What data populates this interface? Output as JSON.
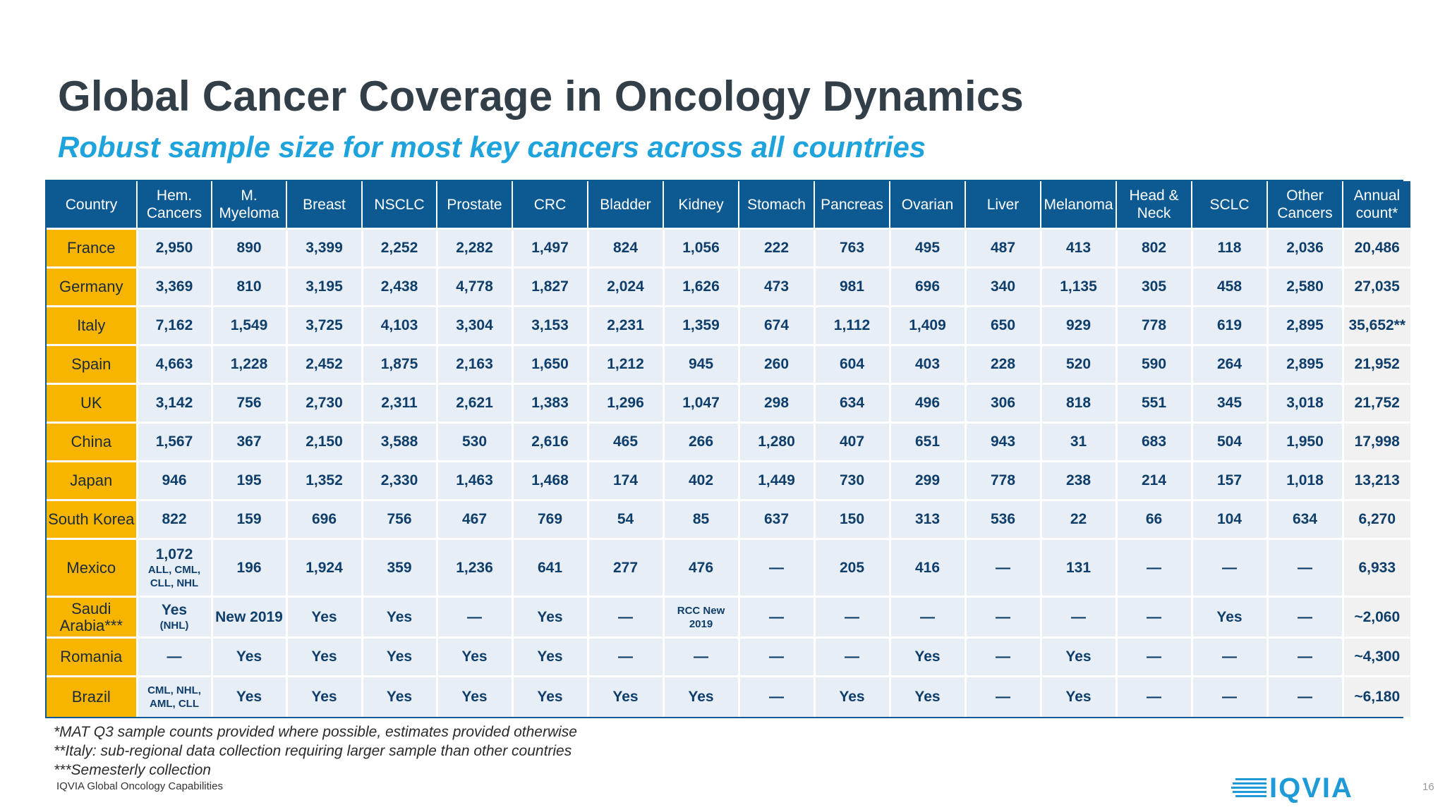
{
  "slide": {
    "title": "Global Cancer Coverage in Oncology Dynamics",
    "subtitle": "Robust sample size for most key cancers across all countries",
    "page_number": "16",
    "source": "IQVIA Global Oncology Capabilities",
    "logo_text": "IQVIA"
  },
  "colors": {
    "header_bg": "#0d5a93",
    "country_bg": "#f7b500",
    "cell_bg": "#e7eef6",
    "annual_bg": "#f1f1f1",
    "title": "#333f48",
    "subtitle": "#1ea3dc",
    "logo": "#1e9ad6"
  },
  "table": {
    "columns": [
      {
        "label": "Country"
      },
      {
        "label": "Hem.\nCancers"
      },
      {
        "label": "M.\nMyeloma"
      },
      {
        "label": "Breast"
      },
      {
        "label": "NSCLC"
      },
      {
        "label": "Prostate"
      },
      {
        "label": "CRC"
      },
      {
        "label": "Bladder"
      },
      {
        "label": "Kidney"
      },
      {
        "label": "Stomach"
      },
      {
        "label": "Pancreas"
      },
      {
        "label": "Ovarian"
      },
      {
        "label": "Liver"
      },
      {
        "label": "Melanoma"
      },
      {
        "label": "Head &\nNeck"
      },
      {
        "label": "SCLC"
      },
      {
        "label": "Other\nCancers"
      },
      {
        "label": "Annual\ncount*"
      }
    ],
    "rows": [
      {
        "country": "France",
        "cells": [
          {
            "v": "2,950"
          },
          {
            "v": "890"
          },
          {
            "v": "3,399"
          },
          {
            "v": "2,252"
          },
          {
            "v": "2,282"
          },
          {
            "v": "1,497"
          },
          {
            "v": "824"
          },
          {
            "v": "1,056"
          },
          {
            "v": "222"
          },
          {
            "v": "763"
          },
          {
            "v": "495"
          },
          {
            "v": "487"
          },
          {
            "v": "413"
          },
          {
            "v": "802"
          },
          {
            "v": "118"
          },
          {
            "v": "2,036"
          },
          {
            "v": "20,486"
          }
        ]
      },
      {
        "country": "Germany",
        "cells": [
          {
            "v": "3,369"
          },
          {
            "v": "810"
          },
          {
            "v": "3,195"
          },
          {
            "v": "2,438"
          },
          {
            "v": "4,778"
          },
          {
            "v": "1,827"
          },
          {
            "v": "2,024"
          },
          {
            "v": "1,626"
          },
          {
            "v": "473"
          },
          {
            "v": "981"
          },
          {
            "v": "696"
          },
          {
            "v": "340"
          },
          {
            "v": "1,135"
          },
          {
            "v": "305"
          },
          {
            "v": "458"
          },
          {
            "v": "2,580"
          },
          {
            "v": "27,035"
          }
        ]
      },
      {
        "country": "Italy",
        "cells": [
          {
            "v": "7,162"
          },
          {
            "v": "1,549"
          },
          {
            "v": "3,725"
          },
          {
            "v": "4,103"
          },
          {
            "v": "3,304"
          },
          {
            "v": "3,153"
          },
          {
            "v": "2,231"
          },
          {
            "v": "1,359"
          },
          {
            "v": "674"
          },
          {
            "v": "1,112"
          },
          {
            "v": "1,409"
          },
          {
            "v": "650"
          },
          {
            "v": "929"
          },
          {
            "v": "778"
          },
          {
            "v": "619"
          },
          {
            "v": "2,895"
          },
          {
            "v": "35,652**"
          }
        ]
      },
      {
        "country": "Spain",
        "cells": [
          {
            "v": "4,663"
          },
          {
            "v": "1,228"
          },
          {
            "v": "2,452"
          },
          {
            "v": "1,875"
          },
          {
            "v": "2,163"
          },
          {
            "v": "1,650"
          },
          {
            "v": "1,212"
          },
          {
            "v": "945"
          },
          {
            "v": "260"
          },
          {
            "v": "604"
          },
          {
            "v": "403"
          },
          {
            "v": "228"
          },
          {
            "v": "520"
          },
          {
            "v": "590"
          },
          {
            "v": "264"
          },
          {
            "v": "2,895"
          },
          {
            "v": "21,952"
          }
        ]
      },
      {
        "country": "UK",
        "cells": [
          {
            "v": "3,142"
          },
          {
            "v": "756"
          },
          {
            "v": "2,730"
          },
          {
            "v": "2,311"
          },
          {
            "v": "2,621"
          },
          {
            "v": "1,383"
          },
          {
            "v": "1,296"
          },
          {
            "v": "1,047"
          },
          {
            "v": "298"
          },
          {
            "v": "634"
          },
          {
            "v": "496"
          },
          {
            "v": "306"
          },
          {
            "v": "818"
          },
          {
            "v": "551"
          },
          {
            "v": "345"
          },
          {
            "v": "3,018"
          },
          {
            "v": "21,752"
          }
        ]
      },
      {
        "country": "China",
        "cells": [
          {
            "v": "1,567"
          },
          {
            "v": "367"
          },
          {
            "v": "2,150"
          },
          {
            "v": "3,588"
          },
          {
            "v": "530"
          },
          {
            "v": "2,616"
          },
          {
            "v": "465"
          },
          {
            "v": "266"
          },
          {
            "v": "1,280"
          },
          {
            "v": "407"
          },
          {
            "v": "651"
          },
          {
            "v": "943"
          },
          {
            "v": "31"
          },
          {
            "v": "683"
          },
          {
            "v": "504"
          },
          {
            "v": "1,950"
          },
          {
            "v": "17,998"
          }
        ]
      },
      {
        "country": "Japan",
        "cells": [
          {
            "v": "946"
          },
          {
            "v": "195"
          },
          {
            "v": "1,352"
          },
          {
            "v": "2,330"
          },
          {
            "v": "1,463"
          },
          {
            "v": "1,468"
          },
          {
            "v": "174"
          },
          {
            "v": "402"
          },
          {
            "v": "1,449"
          },
          {
            "v": "730"
          },
          {
            "v": "299"
          },
          {
            "v": "778"
          },
          {
            "v": "238"
          },
          {
            "v": "214"
          },
          {
            "v": "157"
          },
          {
            "v": "1,018"
          },
          {
            "v": "13,213"
          }
        ]
      },
      {
        "country": "South Korea",
        "cells": [
          {
            "v": "822"
          },
          {
            "v": "159"
          },
          {
            "v": "696"
          },
          {
            "v": "756"
          },
          {
            "v": "467"
          },
          {
            "v": "769"
          },
          {
            "v": "54"
          },
          {
            "v": "85"
          },
          {
            "v": "637"
          },
          {
            "v": "150"
          },
          {
            "v": "313"
          },
          {
            "v": "536"
          },
          {
            "v": "22"
          },
          {
            "v": "66"
          },
          {
            "v": "104"
          },
          {
            "v": "634"
          },
          {
            "v": "6,270"
          }
        ]
      },
      {
        "country": "Mexico",
        "cells": [
          {
            "v": "1,072",
            "sub": "ALL, CML,\nCLL, NHL"
          },
          {
            "v": "196"
          },
          {
            "v": "1,924"
          },
          {
            "v": "359"
          },
          {
            "v": "1,236"
          },
          {
            "v": "641"
          },
          {
            "v": "277"
          },
          {
            "v": "476"
          },
          {
            "v": "—"
          },
          {
            "v": "205"
          },
          {
            "v": "416"
          },
          {
            "v": "—"
          },
          {
            "v": "131"
          },
          {
            "v": "—"
          },
          {
            "v": "—"
          },
          {
            "v": "—"
          },
          {
            "v": "6,933"
          }
        ]
      },
      {
        "country": "Saudi\nArabia***",
        "cells": [
          {
            "v": "Yes",
            "sub": "(NHL)"
          },
          {
            "v": "New 2019"
          },
          {
            "v": "Yes"
          },
          {
            "v": "Yes"
          },
          {
            "v": "—"
          },
          {
            "v": "Yes"
          },
          {
            "v": "—"
          },
          {
            "sub": "RCC New\n2019"
          },
          {
            "v": "—"
          },
          {
            "v": "—"
          },
          {
            "v": "—"
          },
          {
            "v": "—"
          },
          {
            "v": "—"
          },
          {
            "v": "—"
          },
          {
            "v": "Yes"
          },
          {
            "v": "—"
          },
          {
            "v": "~2,060"
          }
        ]
      },
      {
        "country": "Romania",
        "cells": [
          {
            "v": "—"
          },
          {
            "v": "Yes"
          },
          {
            "v": "Yes"
          },
          {
            "v": "Yes"
          },
          {
            "v": "Yes"
          },
          {
            "v": "Yes"
          },
          {
            "v": "—"
          },
          {
            "v": "—"
          },
          {
            "v": "—"
          },
          {
            "v": "—"
          },
          {
            "v": "Yes"
          },
          {
            "v": "—"
          },
          {
            "v": "Yes"
          },
          {
            "v": "—"
          },
          {
            "v": "—"
          },
          {
            "v": "—"
          },
          {
            "v": "~4,300"
          }
        ]
      },
      {
        "country": "Brazil",
        "cells": [
          {
            "sub": "CML, NHL,\nAML, CLL"
          },
          {
            "v": "Yes"
          },
          {
            "v": "Yes"
          },
          {
            "v": "Yes"
          },
          {
            "v": "Yes"
          },
          {
            "v": "Yes"
          },
          {
            "v": "Yes"
          },
          {
            "v": "Yes"
          },
          {
            "v": "—"
          },
          {
            "v": "Yes"
          },
          {
            "v": "Yes"
          },
          {
            "v": "—"
          },
          {
            "v": "Yes"
          },
          {
            "v": "—"
          },
          {
            "v": "—"
          },
          {
            "v": "—"
          },
          {
            "v": "~6,180"
          }
        ]
      }
    ]
  },
  "footnotes": [
    "*MAT Q3 sample counts provided where possible, estimates provided otherwise",
    "**Italy: sub-regional data collection requiring larger sample than other countries",
    "***Semesterly collection"
  ]
}
